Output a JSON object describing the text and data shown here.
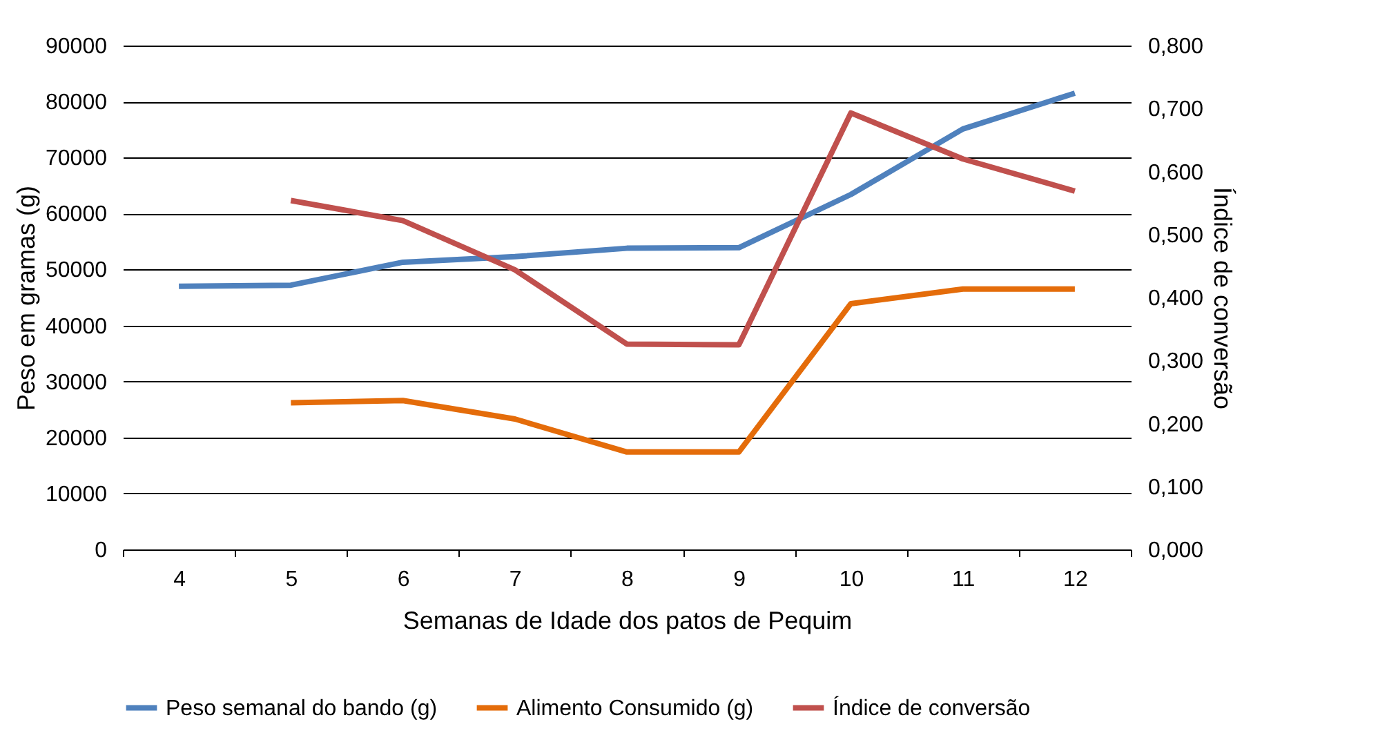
{
  "chart_data": {
    "type": "line",
    "xlabel": "Semanas de Idade dos patos de Pequim",
    "ylabel": "Peso em gramas (g)",
    "y2label": "Índice de conversão",
    "categories": [
      "4",
      "5",
      "6",
      "7",
      "8",
      "9",
      "10",
      "11",
      "12"
    ],
    "series": [
      {
        "name": "Peso semanal do bando (g)",
        "color": "#4f81bd",
        "values": [
          47000,
          47200,
          51300,
          52300,
          53800,
          53900,
          63400,
          75100,
          81500
        ]
      },
      {
        "name": "Alimento Consumido (g)",
        "color": "#e46c0a",
        "values": [
          null,
          26200,
          26600,
          23300,
          17400,
          17400,
          43900,
          46500,
          46500
        ]
      },
      {
        "name": "Índice de conversão",
        "color": "#c0504d",
        "axis": "y2",
        "values": [
          null,
          0.554,
          0.522,
          0.444,
          0.326,
          0.325,
          0.693,
          0.62,
          0.569
        ]
      }
    ],
    "ylim": [
      0,
      90000
    ],
    "yticks": [
      0,
      10000,
      20000,
      30000,
      40000,
      50000,
      60000,
      70000,
      80000,
      90000
    ],
    "y2lim": [
      0,
      0.8
    ],
    "y2ticks": [
      {
        "value": 0,
        "label": "0,000"
      },
      {
        "value": 0.1,
        "label": "0,100"
      },
      {
        "value": 0.2,
        "label": "0,200"
      },
      {
        "value": 0.3,
        "label": "0,300"
      },
      {
        "value": 0.4,
        "label": "0,400"
      },
      {
        "value": 0.5,
        "label": "0,500"
      },
      {
        "value": 0.6,
        "label": "0,600"
      },
      {
        "value": 0.7,
        "label": "0,700"
      },
      {
        "value": 0.8,
        "label": "0,800"
      }
    ],
    "grid": "y",
    "legend": "bottom",
    "line_style": "solid",
    "marker": "none"
  }
}
